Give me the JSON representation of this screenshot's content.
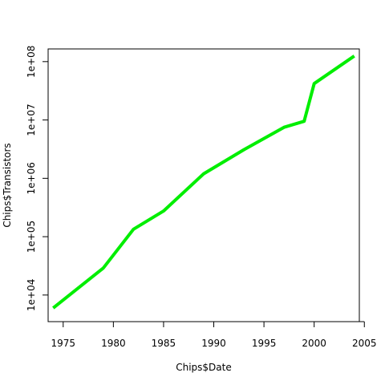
{
  "chart_data": {
    "type": "line",
    "title": "",
    "xlabel": "Chips$Date",
    "ylabel": "Chips$Transistors",
    "y_scale": "log",
    "xlim": [
      1973.5,
      2004.5
    ],
    "ylim": [
      3500,
      165000000
    ],
    "x_ticks": [
      1975,
      1980,
      1985,
      1990,
      1995,
      2000,
      2005
    ],
    "x_tick_labels": [
      "1975",
      "1980",
      "1985",
      "1990",
      "1995",
      "2000",
      "2005"
    ],
    "y_ticks": [
      10000,
      100000,
      1000000,
      10000000,
      100000000
    ],
    "y_tick_labels": [
      "1e+04",
      "1e+05",
      "1e+06",
      "1e+07",
      "1e+08"
    ],
    "grid": false,
    "line_color": "#00ee00",
    "series": [
      {
        "x": [
          1974,
          1979,
          1982,
          1985,
          1989,
          1993,
          1997,
          1999,
          2000,
          2004
        ],
        "y": [
          6000,
          29000,
          134000,
          275000,
          1200000,
          3100000,
          7500000,
          9500000,
          42000000,
          125000000
        ]
      }
    ]
  }
}
